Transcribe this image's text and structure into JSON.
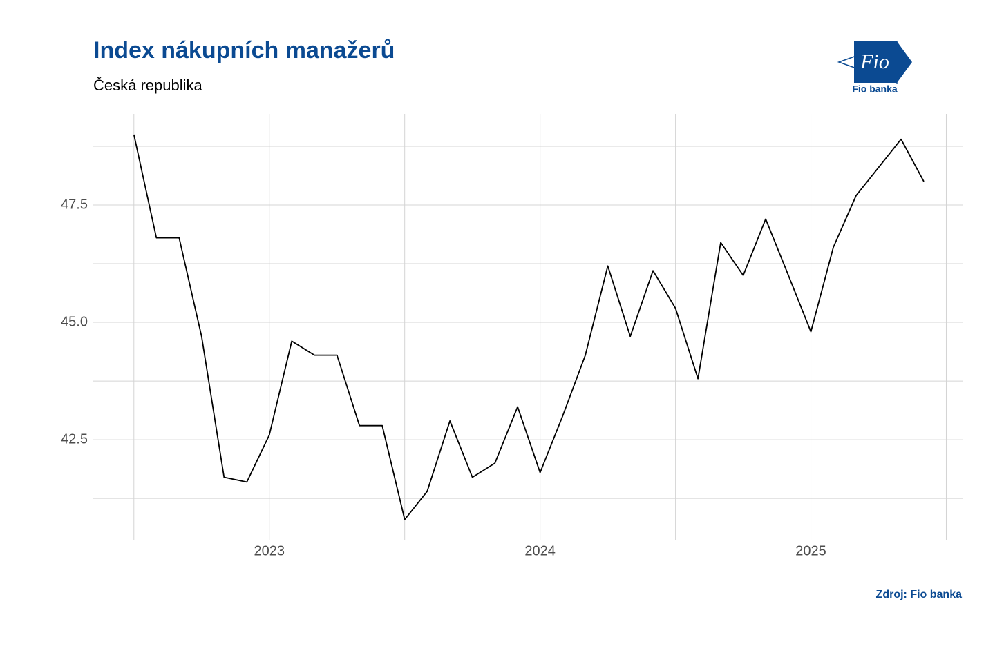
{
  "chart_data": {
    "type": "line",
    "title": "Index nákupních manažerů",
    "subtitle": "Česká republika",
    "source": "Zdroj: Fio banka",
    "logo": {
      "mark": "Fio",
      "name": "Fio banka"
    },
    "x": [
      2022.5,
      2022.583,
      2022.667,
      2022.75,
      2022.833,
      2022.917,
      2023,
      2023.083,
      2023.167,
      2023.25,
      2023.333,
      2023.417,
      2023.5,
      2023.583,
      2023.667,
      2023.75,
      2023.833,
      2023.917,
      2024,
      2024.083,
      2024.167,
      2024.25,
      2024.333,
      2024.417,
      2024.5,
      2024.583,
      2024.667,
      2024.75,
      2024.833,
      2024.917,
      2025,
      2025.083,
      2025.167,
      2025.25,
      2025.333,
      2025.417
    ],
    "series": [
      {
        "color": "#000000",
        "values": [
          49.0,
          46.8,
          46.8,
          44.7,
          41.7,
          41.6,
          42.6,
          44.6,
          44.3,
          44.3,
          42.8,
          42.8,
          40.8,
          41.4,
          42.9,
          41.7,
          42.0,
          43.2,
          41.8,
          43.0,
          44.3,
          46.2,
          44.7,
          46.1,
          45.3,
          43.8,
          46.7,
          46.0,
          47.2,
          46.0,
          44.8,
          46.6,
          47.7,
          48.3,
          48.9,
          48.0
        ]
      }
    ],
    "xlim": [
      2022.35,
      2025.56
    ],
    "xticks": [
      2023,
      2024,
      2025
    ],
    "ylim": [
      40.37,
      49.44
    ],
    "yticks": [
      42.5,
      {
        "value": 45,
        "label": "45.0"
      },
      47.5
    ],
    "grid": true
  }
}
